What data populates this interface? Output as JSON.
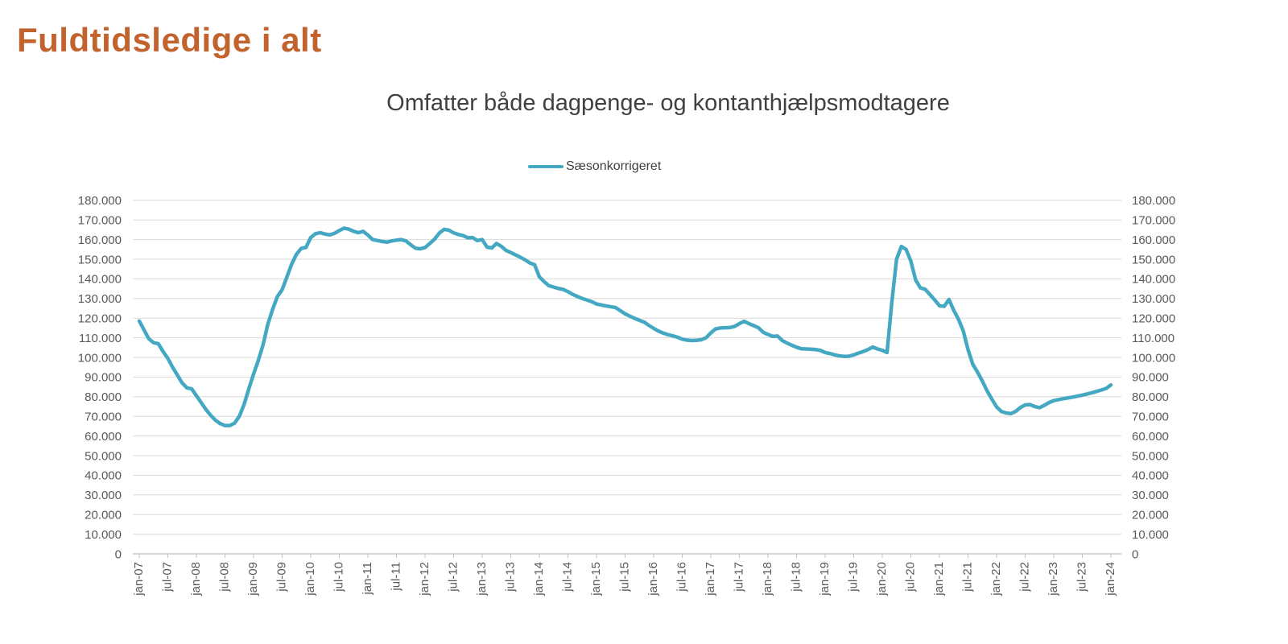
{
  "page": {
    "title": "Fuldtidsledige i alt"
  },
  "colors": {
    "title_text": "#C2632E",
    "subtitle_text": "#404040",
    "legend_text": "#404040",
    "axis_text": "#595959",
    "gridline": "#D9D9D9",
    "axis_line": "#BFBFBF",
    "series_line": "#45A8C3",
    "background": "#FFFFFF"
  },
  "chart_data": {
    "type": "line",
    "title": "Omfatter både dagpenge- og kontanthjælpsmodtagere",
    "legend_position": "top-center",
    "grid": "horizontal",
    "ylim": [
      0,
      180000
    ],
    "y_tick_step": 10000,
    "y_axis_sides": "both",
    "y_tick_format": "thousands-dot",
    "x_start": "jan-07",
    "x_end": "jan-24",
    "x_frequency": "monthly",
    "x_tick_every_months": 6,
    "x_tick_labels": [
      "jan-07",
      "jul-07",
      "jan-08",
      "jul-08",
      "jan-09",
      "jul-09",
      "jan-10",
      "jul-10",
      "jan-11",
      "jul-11",
      "jan-12",
      "jul-12",
      "jan-13",
      "jul-13",
      "jan-14",
      "jul-14",
      "jan-15",
      "jul-15",
      "jan-16",
      "jul-16",
      "jan-17",
      "jul-17",
      "jan-18",
      "jul-18",
      "jan-19",
      "jul-19",
      "jan-20",
      "jul-20",
      "jan-21",
      "jul-21",
      "jan-22",
      "jul-22",
      "jan-23",
      "jul-23",
      "jan-24"
    ],
    "series": [
      {
        "name": "Sæsonkorrigeret",
        "color": "#45A8C3",
        "values": [
          118500,
          114000,
          109500,
          107500,
          107000,
          103000,
          99500,
          95000,
          91000,
          87000,
          84500,
          84000,
          80500,
          77000,
          73500,
          70500,
          68000,
          66300,
          65300,
          65300,
          66500,
          70000,
          76000,
          84000,
          91500,
          98500,
          106500,
          117000,
          124500,
          131000,
          134500,
          141000,
          147500,
          152500,
          155500,
          156000,
          161000,
          163000,
          163500,
          162800,
          162400,
          163200,
          164600,
          165800,
          165300,
          164200,
          163500,
          164200,
          162300,
          160000,
          159500,
          159000,
          158700,
          159300,
          159700,
          160000,
          159300,
          157300,
          155600,
          155300,
          155900,
          158000,
          160200,
          163300,
          165200,
          164800,
          163400,
          162600,
          162000,
          160900,
          161000,
          159500,
          160000,
          156200,
          155700,
          158000,
          156600,
          154500,
          153400,
          152200,
          151000,
          149700,
          148100,
          147200,
          141000,
          138600,
          136500,
          135800,
          135100,
          134600,
          133500,
          132100,
          131000,
          130000,
          129200,
          128400,
          127200,
          126700,
          126200,
          125800,
          125400,
          123800,
          122200,
          121000,
          119900,
          118900,
          118000,
          116300,
          114800,
          113400,
          112400,
          111600,
          111000,
          110300,
          109300,
          108800,
          108600,
          108700,
          109000,
          110000,
          112500,
          114500,
          115000,
          115100,
          115200,
          115800,
          117200,
          118400,
          117200,
          116200,
          115100,
          112800,
          111700,
          110700,
          110900,
          108600,
          107300,
          106200,
          105200,
          104400,
          104300,
          104200,
          104000,
          103600,
          102500,
          102000,
          101300,
          100800,
          100500,
          100600,
          101300,
          102200,
          103000,
          104000,
          105300,
          104300,
          103600,
          102500,
          128000,
          150000,
          156500,
          155000,
          149000,
          139500,
          135400,
          134700,
          132000,
          129300,
          126300,
          126000,
          129500,
          124000,
          119400,
          113500,
          104000,
          96500,
          92500,
          88000,
          83000,
          78800,
          74800,
          72500,
          71700,
          71400,
          72500,
          74500,
          75800,
          76000,
          75000,
          74400,
          75600,
          77000,
          78000,
          78500,
          79000,
          79400,
          79800,
          80300,
          80800,
          81400,
          82000,
          82700,
          83400,
          84200,
          86000
        ]
      }
    ]
  }
}
